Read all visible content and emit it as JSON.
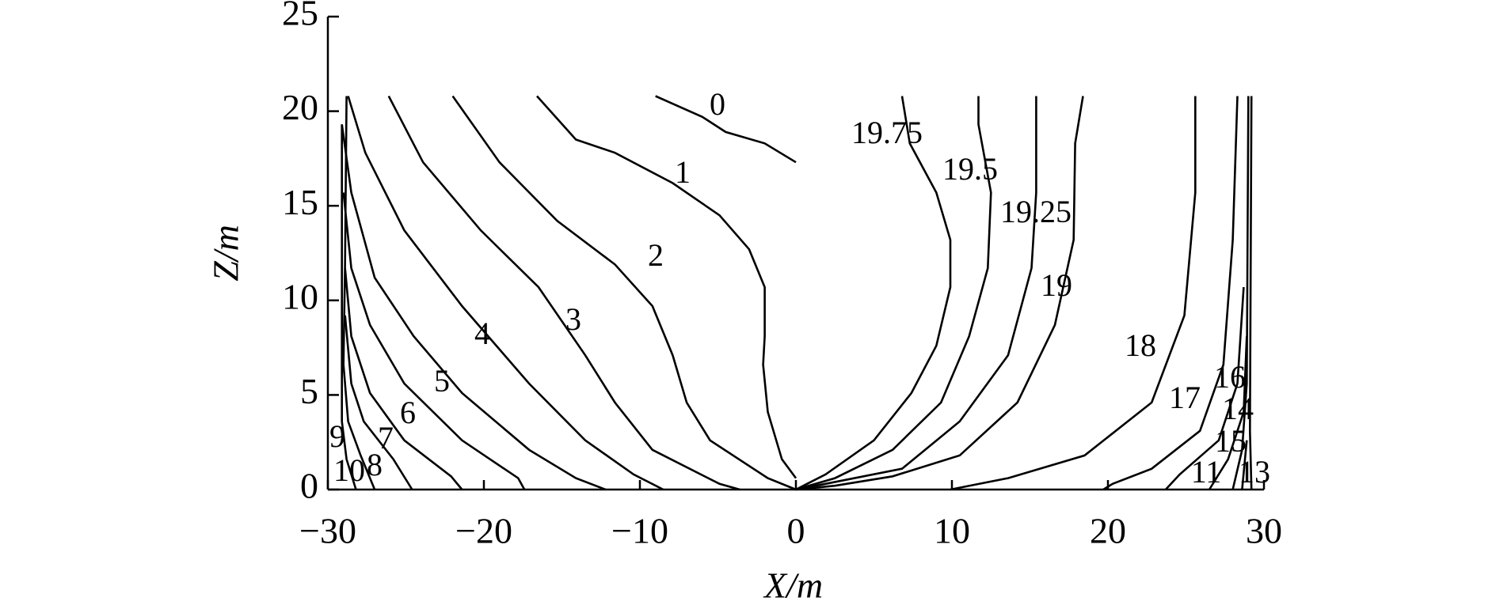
{
  "chart_data": {
    "type": "line",
    "xlabel": "X/m",
    "ylabel": "Z/m",
    "xlim": [
      -30,
      30
    ],
    "ylim": [
      0,
      25
    ],
    "xticks": [
      {
        "value": -30,
        "label": "−30"
      },
      {
        "value": -20,
        "label": "−20"
      },
      {
        "value": -10,
        "label": "−10"
      },
      0,
      10,
      20,
      30
    ],
    "yticks": [
      0,
      5,
      10,
      15,
      20,
      25
    ],
    "color": "#000000",
    "series": [
      {
        "name": "0",
        "x": [
          -9,
          -6,
          -4.5,
          -2,
          0
        ],
        "values": [
          20.8,
          19.7,
          18.9,
          18.3,
          17.3
        ]
      },
      {
        "name": "1",
        "x": [
          -16.6,
          -14.1,
          -11.6,
          -7.9,
          -4.9,
          -3,
          -2,
          -2,
          -2.1,
          -1.8,
          -0.9,
          0
        ],
        "values": [
          20.8,
          18.5,
          17.8,
          16.2,
          14.5,
          12.7,
          10.7,
          8.1,
          6.6,
          4.1,
          1.6,
          0.6
        ]
      },
      {
        "name": "2",
        "x": [
          -22,
          -19,
          -15.3,
          -11.6,
          -9.2,
          -7.9,
          -7,
          -5.5,
          -1.8,
          0
        ],
        "values": [
          20.8,
          17.3,
          14.2,
          11.9,
          9.7,
          7.1,
          4.6,
          2.6,
          0.6,
          0
        ]
      },
      {
        "name": "3",
        "x": [
          -26.1,
          -23.9,
          -20.2,
          -16.5,
          -13.5,
          -11.6,
          -9.2,
          -4.9,
          -3.6
        ],
        "values": [
          20.8,
          17.3,
          13.7,
          10.7,
          7.1,
          4.6,
          2.1,
          0.3,
          0
        ]
      },
      {
        "name": "4",
        "x": [
          -28.7,
          -27.6,
          -25.1,
          -21.4,
          -17.1,
          -13.5,
          -10.4,
          -8.5
        ],
        "values": [
          20.8,
          17.8,
          13.7,
          9.7,
          5.6,
          2.6,
          0.8,
          0
        ]
      },
      {
        "name": "5",
        "x": [
          -29.1,
          -28.5,
          -27,
          -24.5,
          -21.4,
          -17.1,
          -14.1,
          -12.2
        ],
        "values": [
          19.3,
          15.7,
          11.2,
          8.1,
          5.1,
          2.1,
          0.6,
          0
        ]
      },
      {
        "name": "6",
        "x": [
          -29,
          -28.5,
          -27.3,
          -25.1,
          -21.4,
          -17.8,
          -17.4
        ],
        "values": [
          15.7,
          11.7,
          8.7,
          5.6,
          2.6,
          0.6,
          0
        ]
      },
      {
        "name": "7",
        "x": [
          -28.9,
          -28.5,
          -27.3,
          -25.1,
          -22.1,
          -21.4
        ],
        "values": [
          11.7,
          8.1,
          5.1,
          2.6,
          0.7,
          0
        ]
      },
      {
        "name": "8",
        "x": [
          -28.9,
          -28.5,
          -27.7,
          -25.8,
          -24.6
        ],
        "values": [
          9.2,
          5.6,
          3.6,
          1.6,
          0
        ]
      },
      {
        "name": "9",
        "x": [
          -28.8,
          -28.9,
          -29,
          -28.7,
          -27.9,
          -27
        ],
        "values": [
          20.8,
          12,
          6.6,
          3.6,
          1.8,
          0
        ]
      },
      {
        "name": "10",
        "x": [
          -29.1,
          -29.1,
          -28.8,
          -28.2
        ],
        "values": [
          19.3,
          3.6,
          1.6,
          0
        ]
      },
      {
        "name": "19.75",
        "x": [
          6.8,
          7.3,
          9,
          9.9,
          9.9,
          9,
          7.4,
          5,
          1.9,
          0
        ],
        "values": [
          20.8,
          18.3,
          15.7,
          13.2,
          10.7,
          7.6,
          5.1,
          2.6,
          0.8,
          0
        ]
      },
      {
        "name": "19.5",
        "x": [
          11.7,
          11.7,
          12.5,
          12.3,
          11.1,
          9.3,
          6.2,
          2.5,
          0
        ],
        "values": [
          20.8,
          19.3,
          15.7,
          11.7,
          8.1,
          4.6,
          2.1,
          0.6,
          0
        ]
      },
      {
        "name": "19.25",
        "x": [
          15.4,
          15.4,
          15.1,
          13.6,
          10.5,
          6.8,
          1.9,
          0
        ],
        "values": [
          20.8,
          15.7,
          11.7,
          7.1,
          3.6,
          1.1,
          0.3,
          0
        ]
      },
      {
        "name": "19",
        "x": [
          18.4,
          17.9,
          17.8,
          16.6,
          14.2,
          10.5,
          6.2,
          2.5,
          0
        ],
        "values": [
          20.8,
          18.3,
          13.2,
          8.7,
          4.6,
          1.8,
          0.7,
          0.2,
          0
        ]
      },
      {
        "name": "18",
        "x": [
          25.6,
          25.6,
          24.9,
          22.8,
          18.5,
          13.6,
          9.9
        ],
        "values": [
          20.8,
          15.7,
          9.2,
          4.6,
          1.8,
          0.6,
          0
        ]
      },
      {
        "name": "17",
        "x": [
          28.3,
          28,
          27.4,
          25.9,
          22.8,
          20.3,
          19.7
        ],
        "values": [
          20.8,
          13.2,
          6.6,
          3.1,
          1.1,
          0.3,
          0
        ]
      },
      {
        "name": "16",
        "x": [
          28.7,
          28.3,
          27.1,
          24.6,
          23.7
        ],
        "values": [
          10.7,
          5.6,
          2.6,
          0.8,
          0
        ]
      },
      {
        "name": "15",
        "x": [
          28.9,
          28.7,
          27.7,
          26.5
        ],
        "values": [
          8.1,
          4.1,
          1.6,
          0
        ]
      },
      {
        "name": "14",
        "x": [
          29,
          28.9,
          28.6,
          28
        ],
        "values": [
          20.8,
          5.6,
          2.1,
          0
        ]
      },
      {
        "name": "13",
        "x": [
          29.2,
          29.1,
          29.2
        ],
        "values": [
          20.8,
          3.1,
          0
        ]
      },
      {
        "name": "11",
        "x": [
          28.9,
          28.6
        ],
        "values": [
          2.6,
          0
        ]
      }
    ]
  }
}
